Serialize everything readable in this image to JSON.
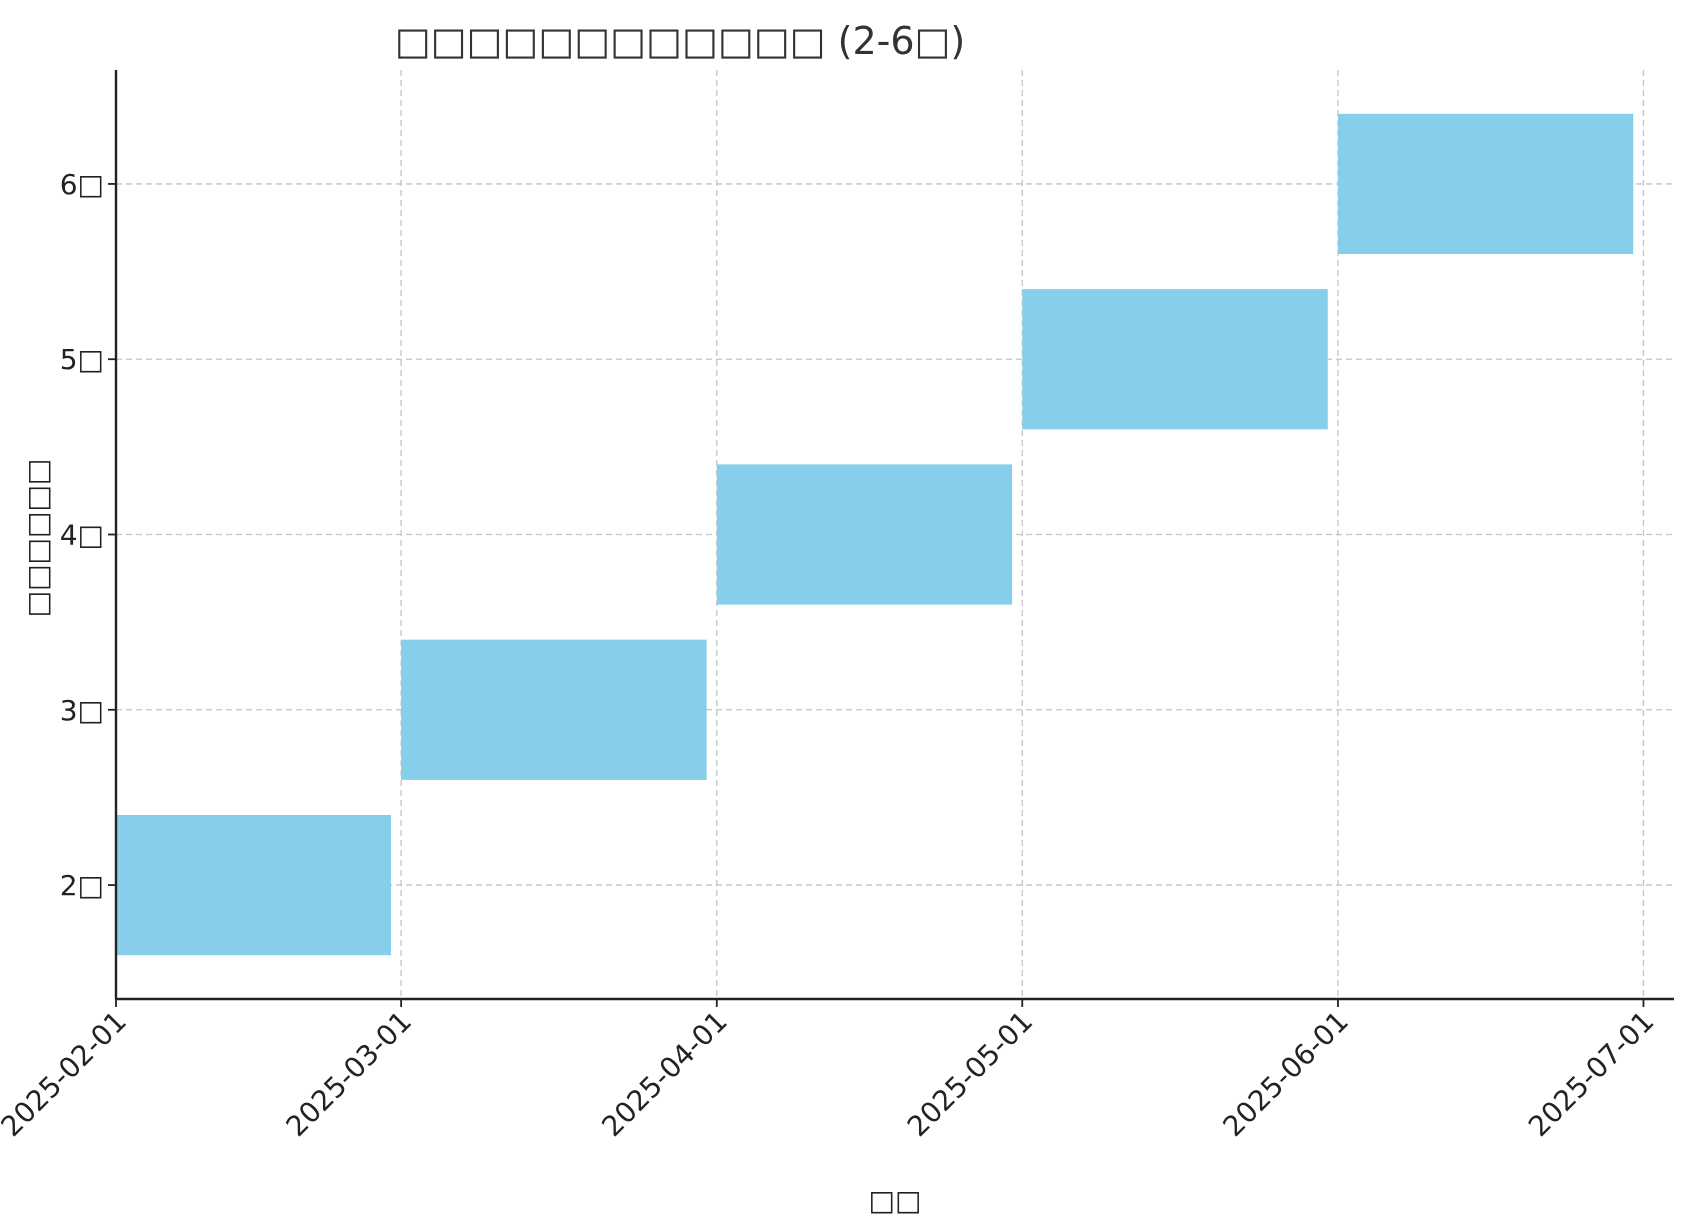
{
  "chart_data": {
    "type": "bar",
    "orientation": "horizontal",
    "title": "□□□□□□□□□□□□ (2-6□)",
    "xlabel": "□□",
    "ylabel": "□□□□□□",
    "categories": [
      "2□",
      "3□",
      "4□",
      "5□",
      "6□"
    ],
    "y_positions": [
      2,
      3,
      4,
      5,
      6
    ],
    "tasks": [
      {
        "label": "2□",
        "start": "2025-02-01",
        "end": "2025-02-28"
      },
      {
        "label": "3□",
        "start": "2025-03-01",
        "end": "2025-03-31"
      },
      {
        "label": "4□",
        "start": "2025-04-01",
        "end": "2025-04-30"
      },
      {
        "label": "5□",
        "start": "2025-05-01",
        "end": "2025-05-31"
      },
      {
        "label": "6□",
        "start": "2025-06-01",
        "end": "2025-06-30"
      }
    ],
    "xticks": [
      "2025-02-01",
      "2025-03-01",
      "2025-04-01",
      "2025-05-01",
      "2025-06-01",
      "2025-07-01"
    ],
    "xlim": [
      "2025-02-01",
      "2025-07-04"
    ],
    "ylim": [
      1.35,
      6.65
    ],
    "bar_height": 0.8,
    "bar_color": "#87CEEB",
    "grid": true,
    "grid_style": "dashed"
  }
}
